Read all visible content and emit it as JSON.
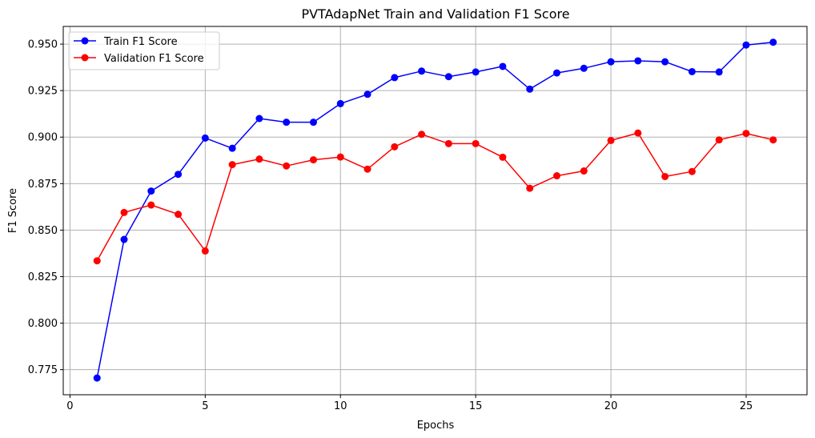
{
  "chart_data": {
    "type": "line",
    "title": "PVTAdapNet Train and Validation F1 Score",
    "xlabel": "Epochs",
    "ylabel": "F1 Score",
    "xlim": [
      -0.25,
      27.25
    ],
    "ylim": [
      0.7615,
      0.9595
    ],
    "xticks": [
      0,
      5,
      10,
      15,
      20,
      25
    ],
    "yticks": [
      0.775,
      0.8,
      0.825,
      0.85,
      0.875,
      0.9,
      0.925,
      0.95
    ],
    "ytick_labels": [
      "0.775",
      "0.800",
      "0.825",
      "0.850",
      "0.875",
      "0.900",
      "0.925",
      "0.950"
    ],
    "grid": true,
    "legend_position": "upper-left",
    "x": [
      1,
      2,
      3,
      4,
      5,
      6,
      7,
      8,
      9,
      10,
      11,
      12,
      13,
      14,
      15,
      16,
      17,
      18,
      19,
      20,
      21,
      22,
      23,
      24,
      25,
      26
    ],
    "series": [
      {
        "name": "Train F1 Score",
        "color": "#0000ff",
        "marker": "circle",
        "values": [
          0.7705,
          0.845,
          0.871,
          0.88,
          0.8995,
          0.894,
          0.91,
          0.908,
          0.908,
          0.918,
          0.923,
          0.932,
          0.9355,
          0.9325,
          0.935,
          0.938,
          0.9258,
          0.9345,
          0.937,
          0.9405,
          0.941,
          0.9405,
          0.9352,
          0.935,
          0.9495,
          0.951
        ]
      },
      {
        "name": "Validation F1 Score",
        "color": "#ff0000",
        "marker": "circle",
        "values": [
          0.8335,
          0.8595,
          0.8635,
          0.8585,
          0.8388,
          0.8852,
          0.8882,
          0.8845,
          0.8878,
          0.8893,
          0.8828,
          0.8948,
          0.9015,
          0.8965,
          0.8965,
          0.8892,
          0.8725,
          0.8792,
          0.8818,
          0.8982,
          0.9022,
          0.8788,
          0.8815,
          0.8985,
          0.902,
          0.8985
        ]
      }
    ]
  }
}
